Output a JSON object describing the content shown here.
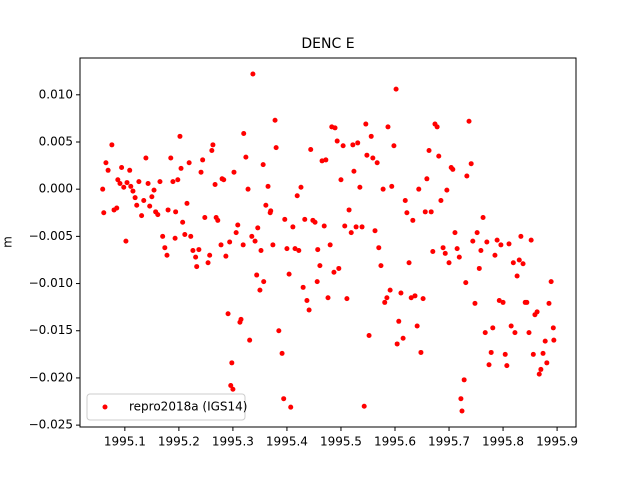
{
  "chart_data": {
    "type": "scatter",
    "title": "DENC E",
    "ylabel": "m",
    "legend_loc": "lower left",
    "xlim": [
      1995.017,
      1995.935
    ],
    "ylim": [
      -0.0252,
      0.0139
    ],
    "xticks": [
      1995.1,
      1995.2,
      1995.3,
      1995.4,
      1995.5,
      1995.6,
      1995.7,
      1995.8,
      1995.9
    ],
    "yticks": [
      {
        "value": -0.025,
        "label": "−0.025"
      },
      {
        "value": -0.02,
        "label": "−0.020"
      },
      {
        "value": -0.015,
        "label": "−0.015"
      },
      {
        "value": -0.01,
        "label": "−0.010"
      },
      {
        "value": -0.005,
        "label": "−0.005"
      },
      {
        "value": 0,
        "label": "0.000"
      },
      {
        "value": 0.005,
        "label": "0.005"
      },
      {
        "value": 0.01,
        "label": "0.010"
      }
    ],
    "series": [
      {
        "name": "repro2018a (IGS14)",
        "color": "#ff0000",
        "x": [
          1995.059,
          1995.061,
          1995.065,
          1995.069,
          1995.076,
          1995.08,
          1995.085,
          1995.087,
          1995.091,
          1995.094,
          1995.098,
          1995.102,
          1995.104,
          1995.109,
          1995.111,
          1995.115,
          1995.119,
          1995.122,
          1995.126,
          1995.131,
          1995.135,
          1995.139,
          1995.143,
          1995.146,
          1995.15,
          1995.154,
          1995.157,
          1995.161,
          1995.165,
          1995.17,
          1995.174,
          1995.178,
          1995.18,
          1995.185,
          1995.189,
          1995.193,
          1995.194,
          1995.198,
          1995.202,
          1995.204,
          1995.207,
          1995.211,
          1995.215,
          1995.219,
          1995.222,
          1995.226,
          1995.231,
          1995.233,
          1995.237,
          1995.241,
          1995.244,
          1995.248,
          1995.254,
          1995.257,
          1995.261,
          1995.263,
          1995.267,
          1995.269,
          1995.272,
          1995.278,
          1995.28,
          1995.283,
          1995.287,
          1995.291,
          1995.294,
          1995.296,
          1995.298,
          1995.3,
          1995.302,
          1995.306,
          1995.309,
          1995.313,
          1995.315,
          1995.319,
          1995.32,
          1995.324,
          1995.328,
          1995.331,
          1995.335,
          1995.337,
          1995.341,
          1995.344,
          1995.346,
          1995.35,
          1995.352,
          1995.356,
          1995.357,
          1995.361,
          1995.365,
          1995.369,
          1995.37,
          1995.374,
          1995.378,
          1995.38,
          1995.385,
          1995.391,
          1995.394,
          1995.396,
          1995.4,
          1995.404,
          1995.407,
          1995.411,
          1995.415,
          1995.419,
          1995.422,
          1995.426,
          1995.43,
          1995.433,
          1995.437,
          1995.441,
          1995.444,
          1995.448,
          1995.452,
          1995.456,
          1995.457,
          1995.461,
          1995.465,
          1995.469,
          1995.472,
          1995.476,
          1995.48,
          1995.483,
          1995.487,
          1995.489,
          1995.493,
          1995.496,
          1995.5,
          1995.504,
          1995.507,
          1995.511,
          1995.515,
          1995.519,
          1995.522,
          1995.524,
          1995.528,
          1995.531,
          1995.535,
          1995.539,
          1995.543,
          1995.546,
          1995.548,
          1995.552,
          1995.556,
          1995.559,
          1995.563,
          1995.567,
          1995.57,
          1995.574,
          1995.578,
          1995.581,
          1995.585,
          1995.587,
          1995.591,
          1995.594,
          1995.598,
          1995.602,
          1995.604,
          1995.607,
          1995.611,
          1995.615,
          1995.619,
          1995.622,
          1995.626,
          1995.63,
          1995.633,
          1995.637,
          1995.641,
          1995.644,
          1995.648,
          1995.652,
          1995.656,
          1995.659,
          1995.663,
          1995.667,
          1995.67,
          1995.674,
          1995.678,
          1995.681,
          1995.685,
          1995.689,
          1995.693,
          1995.696,
          1995.7,
          1995.704,
          1995.707,
          1995.711,
          1995.715,
          1995.719,
          1995.722,
          1995.724,
          1995.728,
          1995.731,
          1995.733,
          1995.737,
          1995.741,
          1995.744,
          1995.748,
          1995.752,
          1995.756,
          1995.759,
          1995.763,
          1995.767,
          1995.77,
          1995.774,
          1995.778,
          1995.781,
          1995.785,
          1995.789,
          1995.793,
          1995.796,
          1995.8,
          1995.804,
          1995.807,
          1995.811,
          1995.815,
          1995.819,
          1995.822,
          1995.826,
          1995.83,
          1995.833,
          1995.837,
          1995.841,
          1995.844,
          1995.848,
          1995.852,
          1995.856,
          1995.859,
          1995.863,
          1995.867,
          1995.87,
          1995.874,
          1995.878,
          1995.881,
          1995.885,
          1995.889,
          1995.893,
          1995.894
        ],
        "values": [
          0.0,
          -0.0025,
          0.0028,
          0.002,
          0.0047,
          -0.0022,
          -0.002,
          0.001,
          0.0006,
          0.0023,
          0.0002,
          -0.0055,
          0.0007,
          0.002,
          0.0003,
          -0.0002,
          -0.0009,
          -0.0017,
          0.0008,
          -0.0028,
          -0.0012,
          0.0033,
          0.0006,
          -0.0018,
          -0.0008,
          -0.0001,
          -0.0024,
          -0.0027,
          0.0008,
          -0.005,
          -0.0062,
          -0.007,
          -0.0022,
          0.0033,
          0.0008,
          -0.0052,
          -0.0024,
          0.001,
          0.0056,
          0.0022,
          -0.0035,
          -0.0048,
          -0.0015,
          0.0028,
          -0.005,
          -0.0065,
          -0.0072,
          -0.0082,
          -0.0064,
          0.0018,
          0.0031,
          -0.003,
          -0.0078,
          -0.007,
          0.0041,
          0.0047,
          0.0005,
          -0.003,
          -0.0033,
          -0.0059,
          0.0011,
          0.001,
          -0.0071,
          -0.0132,
          -0.0056,
          -0.0208,
          -0.0184,
          -0.0212,
          0.0018,
          -0.0046,
          -0.0038,
          -0.0141,
          -0.0138,
          -0.0059,
          0.0059,
          0.0034,
          0.0,
          -0.016,
          -0.005,
          0.0122,
          -0.0055,
          -0.0091,
          -0.0041,
          -0.0107,
          -0.0065,
          0.0026,
          -0.0098,
          -0.0017,
          0.0003,
          -0.0025,
          -0.0023,
          -0.0059,
          0.0073,
          0.0044,
          -0.015,
          -0.0174,
          -0.0222,
          -0.0032,
          -0.0063,
          -0.009,
          -0.0231,
          -0.004,
          -0.0063,
          -0.0007,
          -0.0065,
          0.0002,
          -0.0104,
          -0.0032,
          -0.0118,
          -0.0128,
          0.0042,
          -0.0033,
          -0.0035,
          -0.0098,
          -0.0064,
          -0.0081,
          0.003,
          -0.0039,
          0.0031,
          -0.0115,
          -0.0059,
          0.0066,
          -0.0088,
          0.0065,
          0.0051,
          -0.0084,
          0.001,
          0.0046,
          -0.0039,
          -0.0116,
          -0.0022,
          -0.0046,
          0.0047,
          0.0019,
          -0.004,
          0.0049,
          0.0002,
          -0.004,
          -0.023,
          0.0069,
          0.0036,
          -0.0155,
          0.0056,
          0.0033,
          -0.0044,
          0.0028,
          -0.0062,
          -0.0081,
          0.0,
          -0.012,
          -0.0115,
          0.0066,
          -0.0107,
          0.0003,
          0.0046,
          0.0106,
          -0.0164,
          -0.014,
          -0.011,
          -0.0158,
          -0.0012,
          -0.0025,
          -0.0078,
          -0.0115,
          -0.0033,
          -0.0113,
          -0.0145,
          0.0,
          -0.0173,
          -0.0116,
          -0.0024,
          0.0011,
          0.0041,
          -0.0024,
          -0.0066,
          0.0069,
          0.0066,
          0.0035,
          -0.0012,
          -0.0062,
          -0.0068,
          -0.0001,
          -0.0078,
          0.0023,
          0.0021,
          -0.0046,
          -0.0063,
          -0.0072,
          -0.0222,
          -0.0235,
          -0.0202,
          -0.0099,
          0.0014,
          0.0072,
          0.0027,
          -0.0055,
          -0.0121,
          -0.0046,
          -0.0084,
          -0.0065,
          -0.003,
          -0.0152,
          -0.0056,
          -0.0186,
          -0.0173,
          -0.0147,
          -0.007,
          -0.0054,
          -0.0118,
          -0.0059,
          -0.012,
          -0.0175,
          -0.0187,
          -0.0058,
          -0.0145,
          -0.0078,
          -0.0152,
          -0.0092,
          -0.0075,
          -0.005,
          -0.0079,
          -0.012,
          -0.012,
          -0.0152,
          -0.0054,
          -0.0175,
          -0.0133,
          -0.013,
          -0.0196,
          -0.0191,
          -0.0174,
          -0.0161,
          -0.0184,
          -0.0121,
          -0.0098,
          -0.0147,
          -0.016
        ]
      }
    ]
  }
}
